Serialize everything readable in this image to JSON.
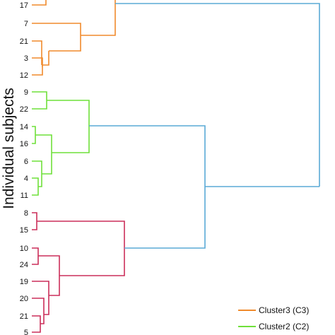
{
  "chart_data": {
    "type": "dendrogram",
    "orientation": "horizontal",
    "ylabel": "Individual subjects",
    "leaves": [
      "17",
      "7",
      "21",
      "3",
      "12",
      "9",
      "22",
      "14",
      "16",
      "6",
      "4",
      "11",
      "8",
      "15",
      "10",
      "24",
      "19",
      "20",
      "21",
      "5"
    ],
    "clusters": [
      {
        "name": "Cluster3 (C3)",
        "color": "#f08a2c",
        "leaves": [
          "17",
          "7",
          "21",
          "3",
          "12"
        ]
      },
      {
        "name": "Cluster2 (C2)",
        "color": "#6fe03a",
        "leaves": [
          "9",
          "22",
          "14",
          "16",
          "6",
          "4",
          "11"
        ]
      },
      {
        "name": "",
        "color": "#cc2f5a",
        "leaves": [
          "8",
          "15",
          "10",
          "24",
          "19",
          "20",
          "21",
          "5"
        ]
      }
    ],
    "link_color": "#5aaad6",
    "legend": [
      {
        "label": "Cluster3 (C3)",
        "color": "#f08a2c"
      },
      {
        "label": "Cluster2 (C2)",
        "color": "#6fe03a"
      }
    ],
    "legend_position": "bottom-right"
  }
}
